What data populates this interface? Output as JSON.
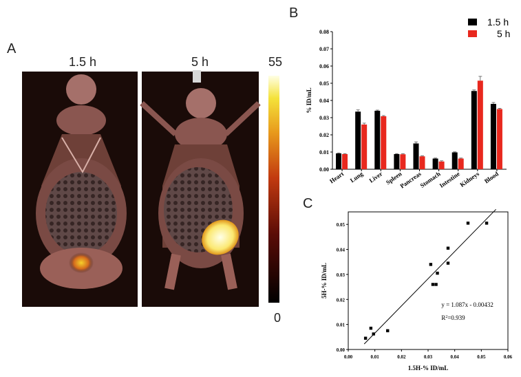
{
  "panel_a": {
    "letter": "A",
    "image_labels": [
      "1.5 h",
      "5 h"
    ],
    "scale_max": "55",
    "scale_min": "0"
  },
  "panel_b": {
    "letter": "B"
  },
  "panel_c": {
    "letter": "C"
  },
  "colors": {
    "series_15h": "#000000",
    "series_5h": "#e8281e"
  },
  "chart_data": [
    {
      "type": "bar",
      "categories": [
        "Heart",
        "Lung",
        "Liver",
        "Spleen",
        "Pancreas",
        "Stomach",
        "Intestine",
        "Kidneys",
        "Blood"
      ],
      "series": [
        {
          "name": "1.5 h",
          "values": [
            0.0092,
            0.0335,
            0.034,
            0.0088,
            0.015,
            0.0062,
            0.0098,
            0.0455,
            0.038
          ],
          "errors": [
            0.0003,
            0.001,
            0.0004,
            0.0003,
            0.0009,
            0.0003,
            0.0003,
            0.0006,
            0.0008
          ]
        },
        {
          "name": "5 h",
          "values": [
            0.0088,
            0.026,
            0.0308,
            0.0087,
            0.0075,
            0.0045,
            0.0062,
            0.0515,
            0.035
          ],
          "errors": [
            0.0003,
            0.0008,
            0.0004,
            0.0003,
            0.0003,
            0.0004,
            0.0003,
            0.0025,
            0.0004
          ]
        }
      ],
      "ylabel": "% ID/mL",
      "ylim": [
        0,
        0.08
      ],
      "yticks": [
        "0.00",
        "0.01",
        "0.02",
        "0.03",
        "0.04",
        "0.05",
        "0.06",
        "0.07",
        "0.08"
      ],
      "legend": [
        "1.5 h",
        "5 h"
      ],
      "legend_position": "top-right",
      "grid": false
    },
    {
      "type": "scatter",
      "points": [
        {
          "x": 0.0065,
          "y": 0.0045
        },
        {
          "x": 0.0085,
          "y": 0.0085
        },
        {
          "x": 0.0095,
          "y": 0.0062
        },
        {
          "x": 0.0148,
          "y": 0.0075
        },
        {
          "x": 0.031,
          "y": 0.034
        },
        {
          "x": 0.0318,
          "y": 0.026
        },
        {
          "x": 0.033,
          "y": 0.026
        },
        {
          "x": 0.0335,
          "y": 0.0305
        },
        {
          "x": 0.0375,
          "y": 0.0345
        },
        {
          "x": 0.0375,
          "y": 0.0405
        },
        {
          "x": 0.045,
          "y": 0.0505
        },
        {
          "x": 0.052,
          "y": 0.0505
        }
      ],
      "fit": {
        "slope": 1.087,
        "intercept": -0.00432
      },
      "annotation_equation": "y = 1.087x - 0.00432",
      "annotation_r2_prefix": "R",
      "annotation_r2_sup": "2",
      "annotation_r2_value": "=0.939",
      "xlabel": "1.5H-% ID/mL",
      "ylabel": "5H-% ID/mL",
      "xlim": [
        0,
        0.06
      ],
      "ylim": [
        0,
        0.055
      ],
      "xticks": [
        "0.00",
        "0.01",
        "0.02",
        "0.03",
        "0.04",
        "0.05",
        "0.06"
      ],
      "yticks": [
        "0.00",
        "0.01",
        "0.02",
        "0.03",
        "0.04",
        "0.05"
      ],
      "grid": false
    }
  ]
}
